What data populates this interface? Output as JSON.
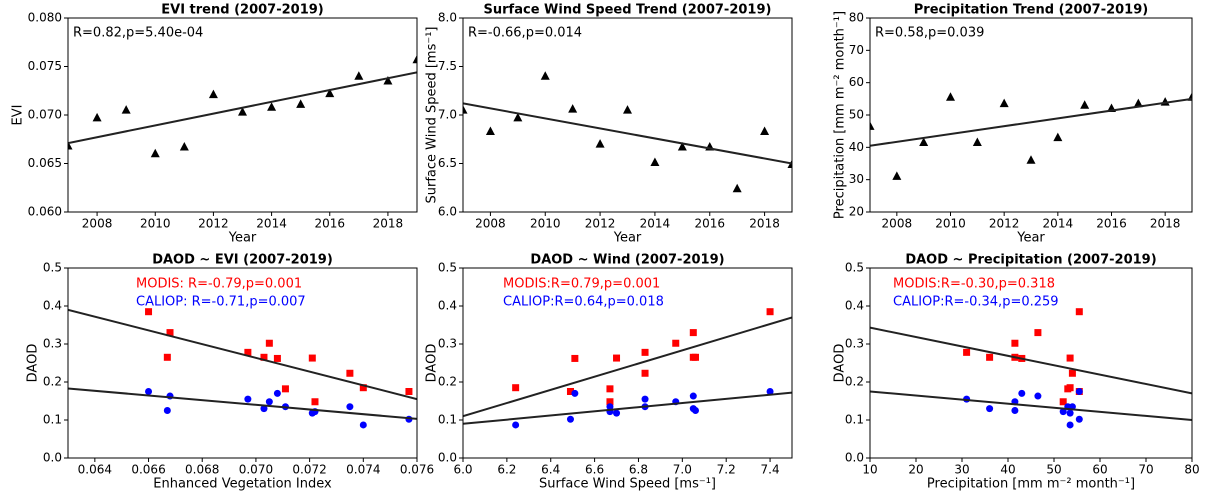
{
  "chart_data": [
    {
      "type": "scatter",
      "title": "EVI trend (2007-2019)",
      "xlabel": "Year",
      "ylabel": "EVI",
      "annotation": "R=0.82,p=5.40e-04",
      "xlim": [
        2007,
        2019
      ],
      "ylim": [
        0.06,
        0.08
      ],
      "xticks": [
        2008,
        2010,
        2012,
        2014,
        2016,
        2018
      ],
      "yticks": [
        {
          "value": 0.06,
          "label": "0.060"
        },
        0.065,
        {
          "value": 0.07,
          "label": "0.070"
        },
        0.075,
        {
          "value": 0.08,
          "label": "0.080"
        }
      ],
      "series": [
        {
          "color": "#000000",
          "marker": "triangle",
          "x": [
            2007,
            2008,
            2009,
            2010,
            2011,
            2012,
            2013,
            2014,
            2015,
            2016,
            2017,
            2018,
            2019
          ],
          "values": [
            0.0668,
            0.0697,
            0.0705,
            0.066,
            0.0667,
            0.0721,
            0.0703,
            0.0708,
            0.0711,
            0.0722,
            0.074,
            0.0735,
            0.0757
          ],
          "trend": {
            "color": "#222222",
            "x": [
              2007,
              2019
            ],
            "values": [
              0.0671,
              0.0744
            ]
          }
        }
      ]
    },
    {
      "type": "scatter",
      "title": "Surface Wind Speed Trend (2007-2019)",
      "xlabel": "Year",
      "ylabel": "Surface Wind Speed [ms⁻¹]",
      "annotation": "R=-0.66,p=0.014",
      "xlim": [
        2007,
        2019
      ],
      "ylim": [
        6.0,
        8.0
      ],
      "xticks": [
        2008,
        2010,
        2012,
        2014,
        2016,
        2018
      ],
      "yticks": [
        {
          "value": 6,
          "label": "6.0"
        },
        6.5,
        {
          "value": 7,
          "label": "7.0"
        },
        7.5,
        {
          "value": 8,
          "label": "8.0"
        }
      ],
      "series": [
        {
          "color": "#000000",
          "marker": "triangle",
          "x": [
            2007,
            2008,
            2009,
            2010,
            2011,
            2012,
            2013,
            2014,
            2015,
            2016,
            2017,
            2018,
            2019
          ],
          "values": [
            7.05,
            6.83,
            6.97,
            7.4,
            7.06,
            6.7,
            7.05,
            6.51,
            6.67,
            6.67,
            6.24,
            6.83,
            6.49
          ],
          "trend": {
            "color": "#222222",
            "x": [
              2007,
              2019
            ],
            "values": [
              7.12,
              6.5
            ]
          }
        }
      ]
    },
    {
      "type": "scatter",
      "title": "Precipitation Trend (2007-2019)",
      "xlabel": "Year",
      "ylabel": "Precipitation [mm m⁻² month⁻¹]",
      "annotation": "R=0.58,p=0.039",
      "xlim": [
        2007,
        2019
      ],
      "ylim": [
        20,
        80
      ],
      "xticks": [
        2008,
        2010,
        2012,
        2014,
        2016,
        2018
      ],
      "yticks": [
        20,
        30,
        40,
        50,
        60,
        70,
        80
      ],
      "series": [
        {
          "color": "#000000",
          "marker": "triangle",
          "x": [
            2007,
            2008,
            2009,
            2010,
            2011,
            2012,
            2013,
            2014,
            2015,
            2016,
            2017,
            2018,
            2019
          ],
          "values": [
            46.5,
            31,
            41.5,
            55.5,
            41.5,
            53.5,
            36,
            43,
            53,
            52,
            53.5,
            54,
            55.5
          ],
          "trend": {
            "color": "#222222",
            "x": [
              2007,
              2019
            ],
            "values": [
              40.5,
              55
            ]
          }
        }
      ]
    },
    {
      "type": "scatter",
      "title": "DAOD ~ EVI (2007-2019)",
      "xlabel": "Enhanced Vegetation Index",
      "ylabel": "DAOD",
      "xlim": [
        0.063,
        0.076
      ],
      "ylim": [
        0,
        0.5
      ],
      "xticks": [
        0.064,
        0.066,
        0.068,
        {
          "value": 0.07,
          "label": "0.070"
        },
        0.072,
        0.074,
        0.076
      ],
      "yticks": [
        {
          "value": 0,
          "label": "0.0"
        },
        0.1,
        0.2,
        0.3,
        0.4,
        0.5
      ],
      "series": [
        {
          "name": "MODIS: R=-0.79,p=0.001",
          "color": "#ff0000",
          "marker": "square",
          "x": [
            0.0668,
            0.0697,
            0.0705,
            0.066,
            0.0667,
            0.0721,
            0.0703,
            0.0708,
            0.0711,
            0.0722,
            0.074,
            0.0735,
            0.0757
          ],
          "values": [
            0.33,
            0.278,
            0.302,
            0.385,
            0.265,
            0.263,
            0.265,
            0.262,
            0.182,
            0.148,
            0.185,
            0.223,
            0.175
          ],
          "trend": {
            "color": "#222222",
            "x": [
              0.063,
              0.076
            ],
            "values": [
              0.39,
              0.155
            ]
          }
        },
        {
          "name": "CALIOP: R=-0.71,p=0.007",
          "color": "#0000ff",
          "marker": "circle",
          "x": [
            0.0668,
            0.0697,
            0.0705,
            0.066,
            0.0667,
            0.0721,
            0.0703,
            0.0708,
            0.0711,
            0.0722,
            0.074,
            0.0735,
            0.0757
          ],
          "values": [
            0.163,
            0.155,
            0.148,
            0.175,
            0.125,
            0.118,
            0.13,
            0.17,
            0.135,
            0.122,
            0.087,
            0.135,
            0.102
          ],
          "trend": {
            "color": "#222222",
            "x": [
              0.063,
              0.076
            ],
            "values": [
              0.183,
              0.103
            ]
          }
        }
      ]
    },
    {
      "type": "scatter",
      "title": "DAOD ~ Wind (2007-2019)",
      "xlabel": "Surface Wind Speed [ms⁻¹]",
      "ylabel": "DAOD",
      "xlim": [
        6.0,
        7.5
      ],
      "ylim": [
        0,
        0.5
      ],
      "xticks": [
        {
          "value": 6,
          "label": "6.0"
        },
        6.2,
        6.4,
        6.6,
        6.8,
        {
          "value": 7,
          "label": "7.0"
        },
        7.2,
        7.4
      ],
      "yticks": [
        {
          "value": 0,
          "label": "0.0"
        },
        0.1,
        0.2,
        0.3,
        0.4,
        0.5
      ],
      "series": [
        {
          "name": "MODIS:R=0.79,p=0.001",
          "color": "#ff0000",
          "marker": "square",
          "x": [
            7.05,
            6.83,
            6.97,
            7.4,
            7.06,
            6.7,
            7.05,
            6.51,
            6.67,
            6.67,
            6.24,
            6.83,
            6.49
          ],
          "values": [
            0.33,
            0.278,
            0.302,
            0.385,
            0.265,
            0.263,
            0.265,
            0.262,
            0.182,
            0.148,
            0.185,
            0.223,
            0.175
          ],
          "trend": {
            "color": "#222222",
            "x": [
              6.0,
              7.5
            ],
            "values": [
              0.11,
              0.37
            ]
          }
        },
        {
          "name": "CALIOP:R=0.64,p=0.018",
          "color": "#0000ff",
          "marker": "circle",
          "x": [
            7.05,
            6.83,
            6.97,
            7.4,
            7.06,
            6.7,
            7.05,
            6.51,
            6.67,
            6.67,
            6.24,
            6.83,
            6.49
          ],
          "values": [
            0.163,
            0.155,
            0.148,
            0.175,
            0.125,
            0.118,
            0.13,
            0.17,
            0.135,
            0.122,
            0.087,
            0.135,
            0.102
          ],
          "trend": {
            "color": "#222222",
            "x": [
              6.0,
              7.5
            ],
            "values": [
              0.09,
              0.172
            ]
          }
        }
      ]
    },
    {
      "type": "scatter",
      "title": "DAOD ~ Precipitation (2007-2019)",
      "xlabel": "Precipitation [mm m⁻² month⁻¹]",
      "ylabel": "DAOD",
      "xlim": [
        10,
        80
      ],
      "ylim": [
        0,
        0.5
      ],
      "xticks": [
        10,
        20,
        30,
        40,
        50,
        60,
        70,
        80
      ],
      "yticks": [
        {
          "value": 0,
          "label": "0.0"
        },
        0.1,
        0.2,
        0.3,
        0.4,
        0.5
      ],
      "series": [
        {
          "name": "MODIS:R=-0.30,p=0.318",
          "color": "#ff0000",
          "marker": "square",
          "x": [
            46.5,
            31,
            41.5,
            55.5,
            41.5,
            53.5,
            36,
            43,
            53,
            52,
            53.5,
            54,
            55.5
          ],
          "values": [
            0.33,
            0.278,
            0.302,
            0.385,
            0.265,
            0.263,
            0.265,
            0.262,
            0.182,
            0.148,
            0.185,
            0.223,
            0.175
          ],
          "trend": {
            "color": "#222222",
            "x": [
              10,
              80
            ],
            "values": [
              0.343,
              0.17
            ]
          }
        },
        {
          "name": "CALIOP:R=-0.34,p=0.259",
          "color": "#0000ff",
          "marker": "circle",
          "x": [
            46.5,
            31,
            41.5,
            55.5,
            41.5,
            53.5,
            36,
            43,
            53,
            52,
            53.5,
            54,
            55.5
          ],
          "values": [
            0.163,
            0.155,
            0.148,
            0.175,
            0.125,
            0.118,
            0.13,
            0.17,
            0.135,
            0.122,
            0.087,
            0.135,
            0.102
          ],
          "trend": {
            "color": "#222222",
            "x": [
              10,
              80
            ],
            "values": [
              0.175,
              0.1
            ]
          }
        }
      ]
    }
  ]
}
